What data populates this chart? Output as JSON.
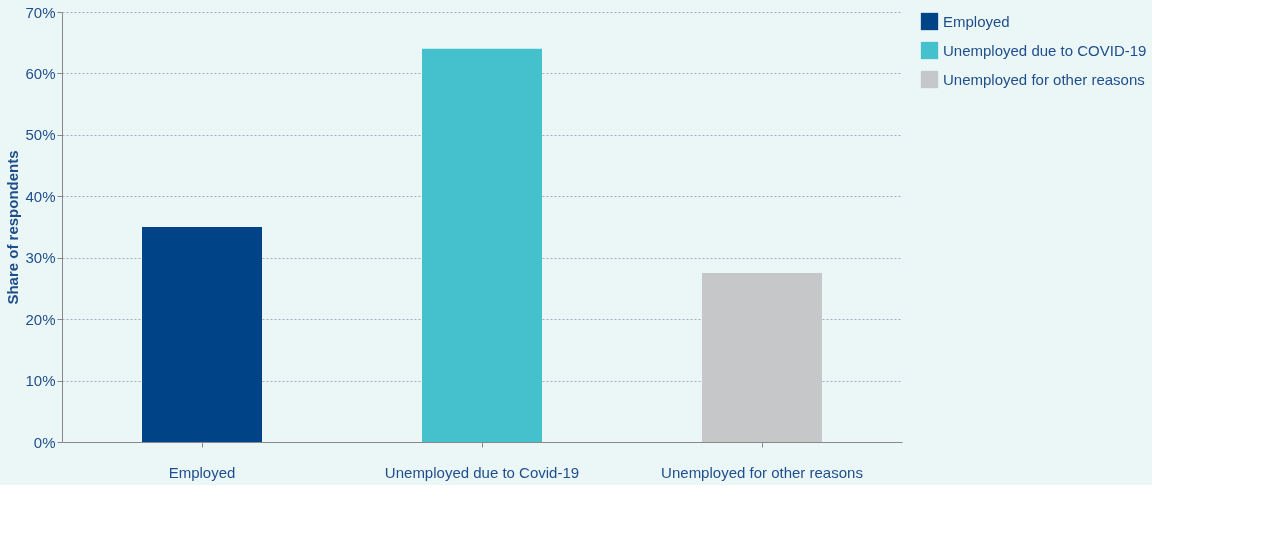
{
  "chart_data": {
    "type": "bar",
    "ylabel": "Share of respondents",
    "categories": [
      "Employed",
      "Unemployed due to Covid-19",
      "Unemployed for other reasons"
    ],
    "series": [
      {
        "name": "Employed",
        "color": "#004487",
        "values": [
          35,
          null,
          null
        ]
      },
      {
        "name": "Unemployed due to COVID-19",
        "color": "#45c1cd",
        "values": [
          null,
          64,
          null
        ]
      },
      {
        "name": "Unemployed for other reasons",
        "color": "#c6c7c8",
        "values": [
          null,
          null,
          27.5
        ]
      }
    ],
    "ylim": [
      0,
      70
    ],
    "yticks": [
      {
        "value": 0,
        "label": "0%"
      },
      {
        "value": 10,
        "label": "10%"
      },
      {
        "value": 20,
        "label": "20%"
      },
      {
        "value": 30,
        "label": "30%"
      },
      {
        "value": 40,
        "label": "40%"
      },
      {
        "value": 50,
        "label": "50%"
      },
      {
        "value": 60,
        "label": "60%"
      },
      {
        "value": 70,
        "label": "70%"
      }
    ],
    "grid": "y",
    "legend": "top right"
  }
}
